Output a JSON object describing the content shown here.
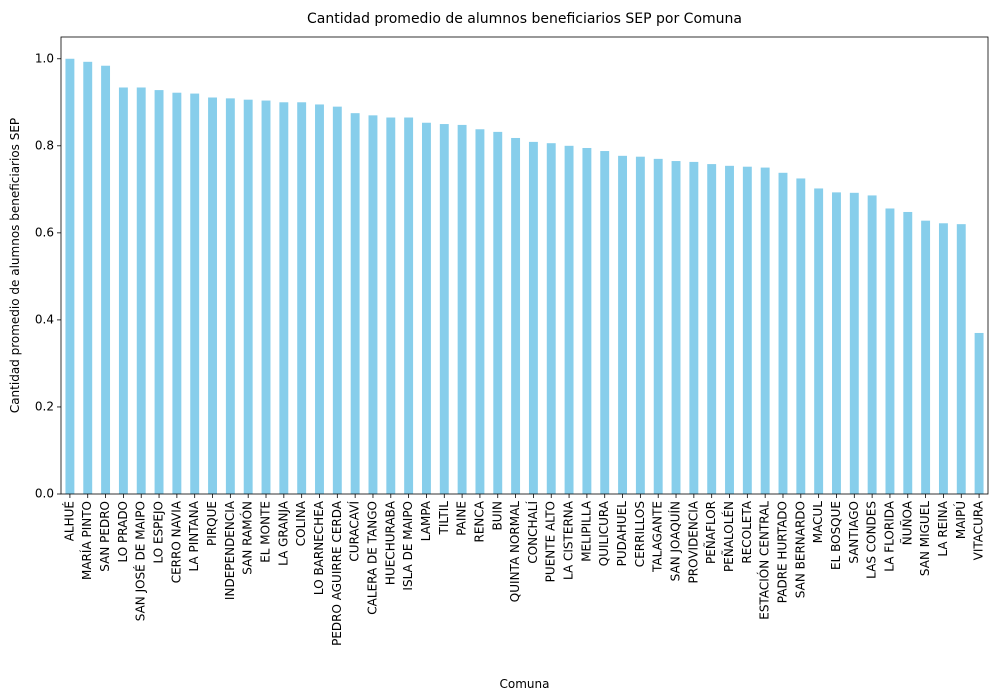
{
  "chart_data": {
    "type": "bar",
    "title": "Cantidad promedio de alumnos beneficiarios SEP por Comuna",
    "xlabel": "Comuna",
    "ylabel": "Cantidad promedio de alumnos beneficiarios SEP",
    "ylim": [
      0,
      1.05
    ],
    "yticks": [
      "0.0",
      "0.2",
      "0.4",
      "0.6",
      "0.8",
      "1.0"
    ],
    "yticks_values": [
      0,
      0.2,
      0.4,
      0.6,
      0.8,
      1.0
    ],
    "grid": false,
    "bar_color": "#87ceeb",
    "categories": [
      "ALHUÉ",
      "MARÍA PINTO",
      "SAN PEDRO",
      "LO PRADO",
      "SAN JOSÉ DE MAIPO",
      "LO ESPEJO",
      "CERRO NAVIA",
      "LA PINTANA",
      "PIRQUE",
      "INDEPENDENCIA",
      "SAN RAMÓN",
      "EL MONTE",
      "LA GRANJA",
      "COLINA",
      "LO BARNECHEA",
      "PEDRO AGUIRRE CERDA",
      "CURACAVÍ",
      "CALERA DE TANGO",
      "HUECHURABA",
      "ISLA DE MAIPO",
      "LAMPA",
      "TILTIL",
      "PAINE",
      "RENCA",
      "BUIN",
      "QUINTA NORMAL",
      "CONCHALÍ",
      "PUENTE ALTO",
      "LA CISTERNA",
      "MELIPILLA",
      "QUILICURA",
      "PUDAHUEL",
      "CERRILLOS",
      "TALAGANTE",
      "SAN JOAQUÍN",
      "PROVIDENCIA",
      "PEÑAFLOR",
      "PEÑALOLÉN",
      "RECOLETA",
      "ESTACIÓN CENTRAL",
      "PADRE HURTADO",
      "SAN BERNARDO",
      "MACUL",
      "EL BOSQUE",
      "SANTIAGO",
      "LAS CONDES",
      "LA FLORIDA",
      "ÑUÑOA",
      "SAN MIGUEL",
      "LA REINA",
      "MAIPÚ",
      "VITACURA"
    ],
    "values": [
      1.0,
      0.993,
      0.984,
      0.934,
      0.934,
      0.928,
      0.922,
      0.92,
      0.911,
      0.909,
      0.906,
      0.904,
      0.9,
      0.9,
      0.895,
      0.89,
      0.875,
      0.87,
      0.865,
      0.865,
      0.853,
      0.85,
      0.848,
      0.838,
      0.832,
      0.818,
      0.809,
      0.806,
      0.8,
      0.795,
      0.788,
      0.777,
      0.775,
      0.77,
      0.765,
      0.763,
      0.758,
      0.754,
      0.752,
      0.75,
      0.738,
      0.725,
      0.702,
      0.693,
      0.692,
      0.686,
      0.656,
      0.648,
      0.628,
      0.622,
      0.62,
      0.37
    ]
  }
}
